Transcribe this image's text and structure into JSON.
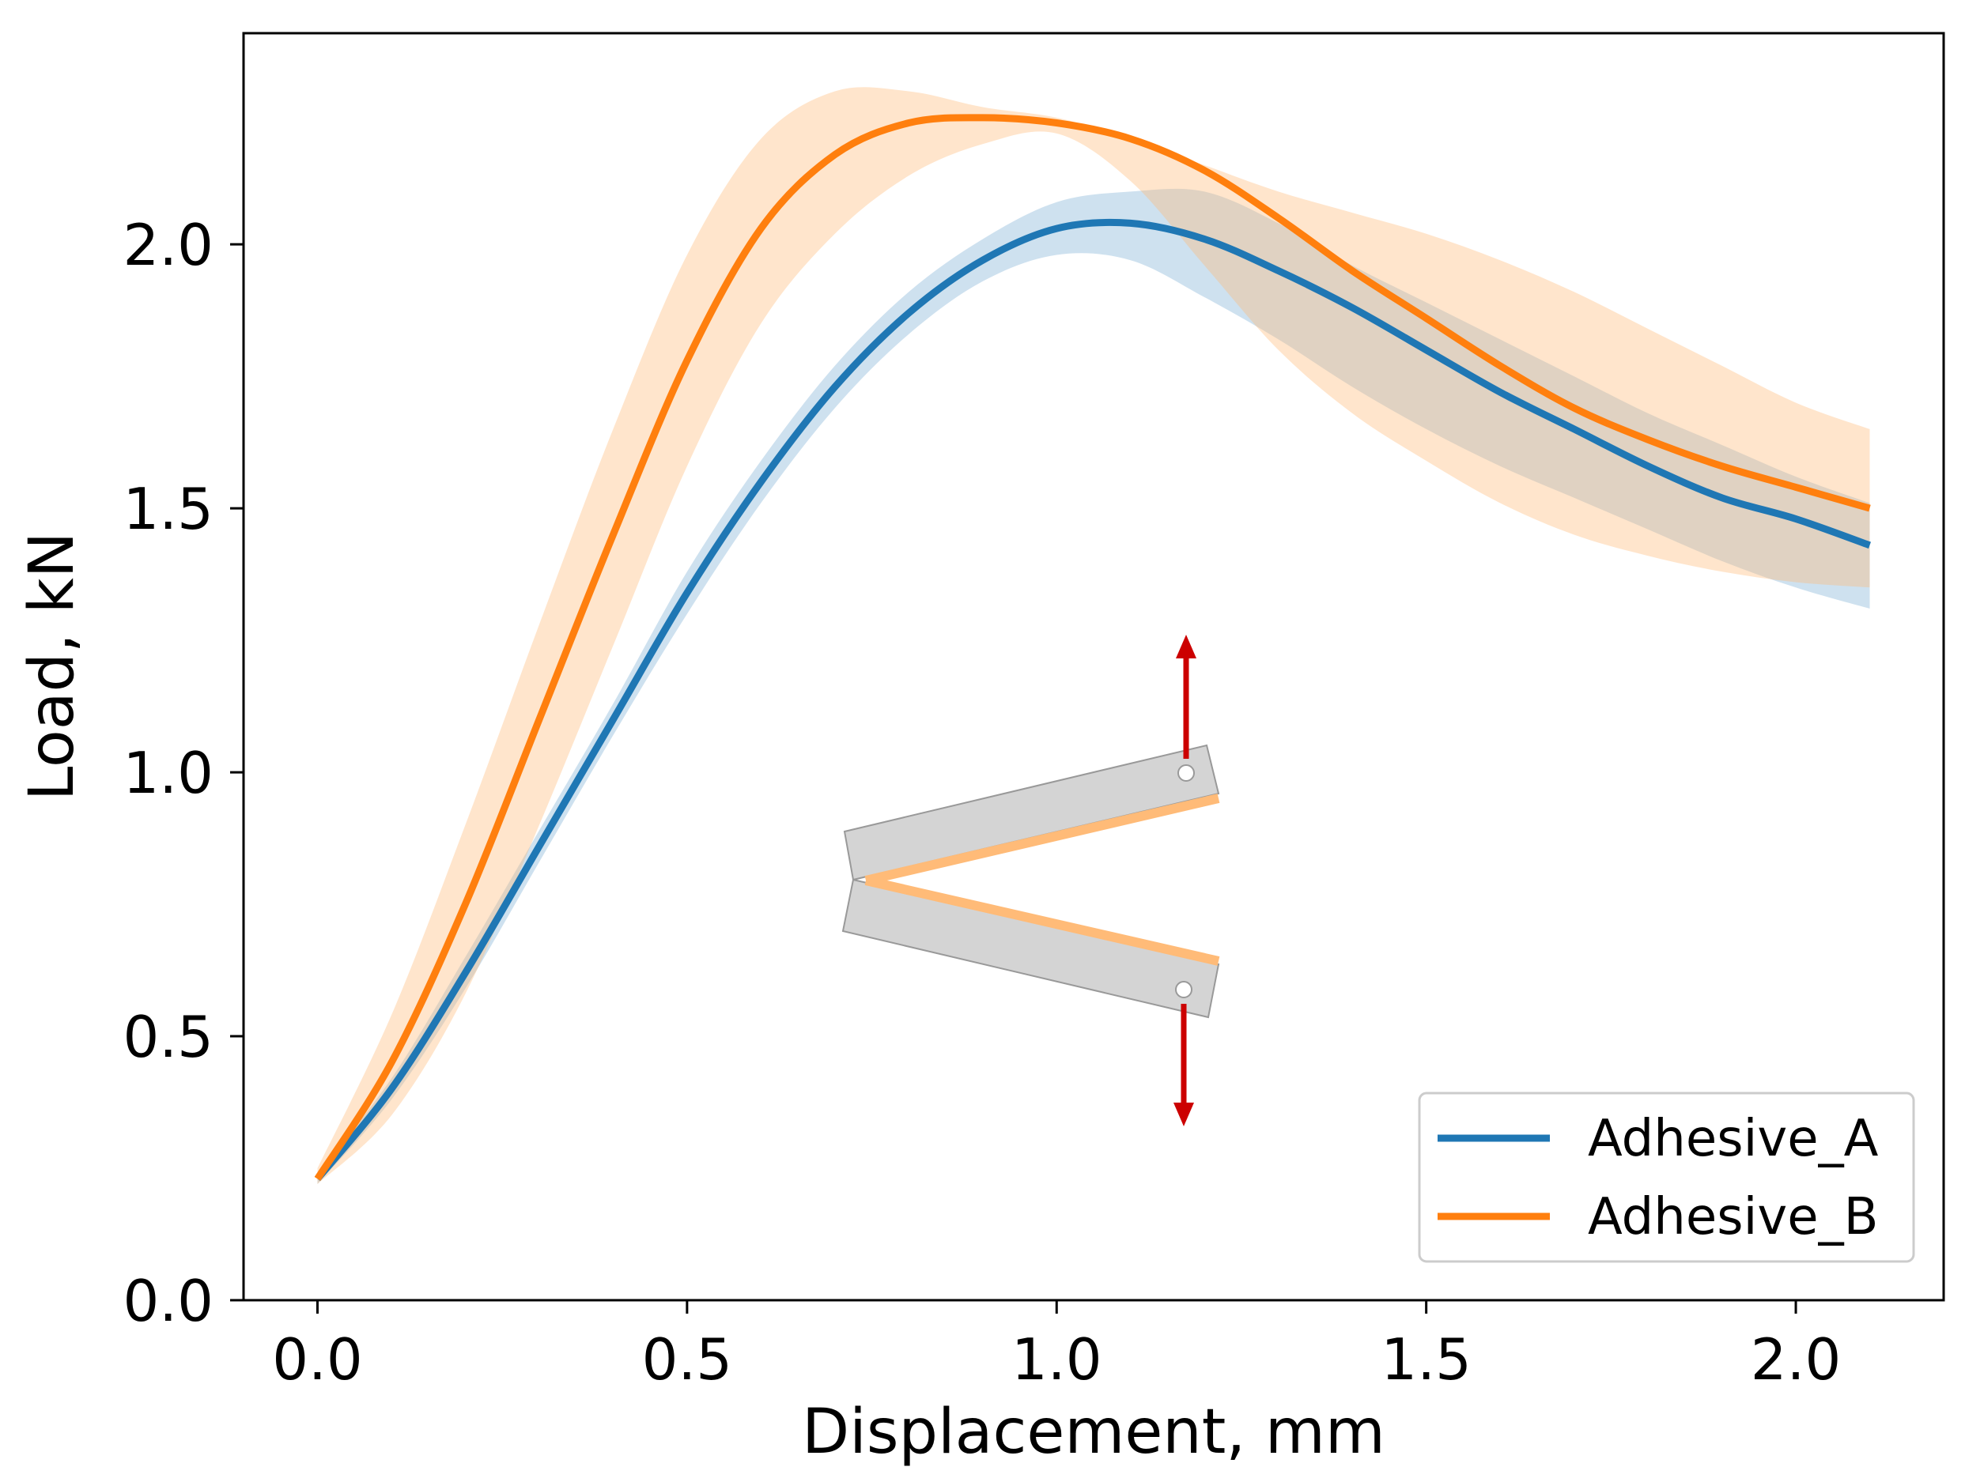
{
  "chart_data": {
    "type": "line",
    "title": "",
    "xlabel": "Displacement, mm",
    "ylabel": "Load, kN",
    "xlim": [
      -0.1,
      2.2
    ],
    "ylim": [
      0.0,
      2.4
    ],
    "xticks": [
      0.0,
      0.5,
      1.0,
      1.5,
      2.0
    ],
    "yticks": [
      0.0,
      0.5,
      1.0,
      1.5,
      2.0
    ],
    "xtick_labels": [
      "0.0",
      "0.5",
      "1.0",
      "1.5",
      "2.0"
    ],
    "ytick_labels": [
      "0.0",
      "0.5",
      "1.0",
      "1.5",
      "2.0"
    ],
    "grid": false,
    "legend_position": "lower-right",
    "x": [
      0.0,
      0.1,
      0.2,
      0.3,
      0.4,
      0.5,
      0.6,
      0.7,
      0.8,
      0.9,
      1.0,
      1.1,
      1.2,
      1.3,
      1.4,
      1.5,
      1.6,
      1.7,
      1.8,
      1.9,
      2.0,
      2.1
    ],
    "series": [
      {
        "name": "Adhesive_A",
        "color": "#1f77b4",
        "band_color": "#1f77b4",
        "values": [
          0.23,
          0.4,
          0.62,
          0.86,
          1.1,
          1.34,
          1.55,
          1.73,
          1.87,
          1.97,
          2.03,
          2.04,
          2.01,
          1.95,
          1.88,
          1.8,
          1.72,
          1.65,
          1.58,
          1.52,
          1.48,
          1.43
        ],
        "lower": [
          0.22,
          0.38,
          0.59,
          0.83,
          1.07,
          1.3,
          1.51,
          1.69,
          1.83,
          1.93,
          1.98,
          1.97,
          1.9,
          1.82,
          1.73,
          1.65,
          1.58,
          1.52,
          1.46,
          1.4,
          1.35,
          1.31
        ],
        "upper": [
          0.24,
          0.42,
          0.65,
          0.89,
          1.13,
          1.38,
          1.59,
          1.77,
          1.91,
          2.01,
          2.08,
          2.1,
          2.1,
          2.04,
          1.96,
          1.89,
          1.82,
          1.75,
          1.68,
          1.62,
          1.56,
          1.51
        ]
      },
      {
        "name": "Adhesive_B",
        "color": "#ff7f0e",
        "band_color": "#ffbb78",
        "values": [
          0.23,
          0.45,
          0.75,
          1.1,
          1.45,
          1.78,
          2.03,
          2.17,
          2.23,
          2.24,
          2.23,
          2.2,
          2.14,
          2.05,
          1.95,
          1.86,
          1.77,
          1.69,
          1.63,
          1.58,
          1.54,
          1.5
        ],
        "lower": [
          0.22,
          0.35,
          0.58,
          0.9,
          1.24,
          1.58,
          1.85,
          2.02,
          2.13,
          2.19,
          2.21,
          2.12,
          1.96,
          1.8,
          1.68,
          1.59,
          1.51,
          1.45,
          1.41,
          1.38,
          1.36,
          1.35
        ],
        "upper": [
          0.25,
          0.54,
          0.9,
          1.28,
          1.65,
          1.98,
          2.2,
          2.29,
          2.29,
          2.26,
          2.24,
          2.2,
          2.15,
          2.1,
          2.06,
          2.02,
          1.97,
          1.91,
          1.84,
          1.77,
          1.7,
          1.65
        ]
      }
    ]
  }
}
